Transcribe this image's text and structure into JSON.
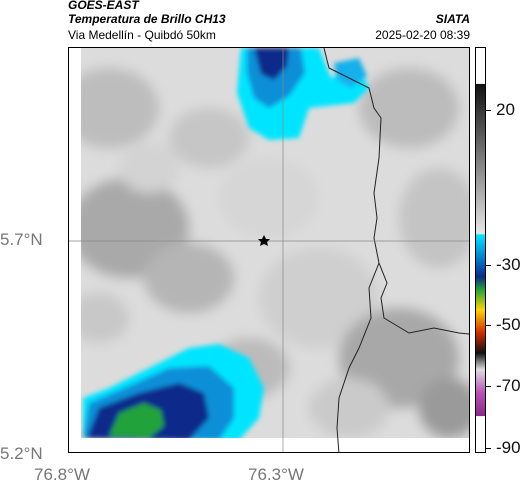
{
  "header": {
    "title": "GOES-EAST",
    "subtitle": "Temperatura de Brillo CH13",
    "region": "Via Medellín - Quibdó 50km",
    "agency": "SIATA",
    "datetime": "2025-02-20 08:39"
  },
  "axes": {
    "y_ticks": [
      "5.7°N",
      "5.2°N"
    ],
    "x_ticks": [
      "76.8°W",
      "76.3°W"
    ]
  },
  "colorbar": {
    "labels": [
      "20",
      "-30",
      "-50",
      "-70",
      "-90"
    ],
    "colors": {
      "warm": "#e6e6e6",
      "cyan": "#00e5ff",
      "blue": "#0077cc",
      "navy": "#0b2a8a",
      "green": "#23a23a",
      "yellow": "#ffd400",
      "red": "#d22b00",
      "magenta": "#b84fb8"
    }
  },
  "map": {
    "marker_icon": "star-icon"
  }
}
